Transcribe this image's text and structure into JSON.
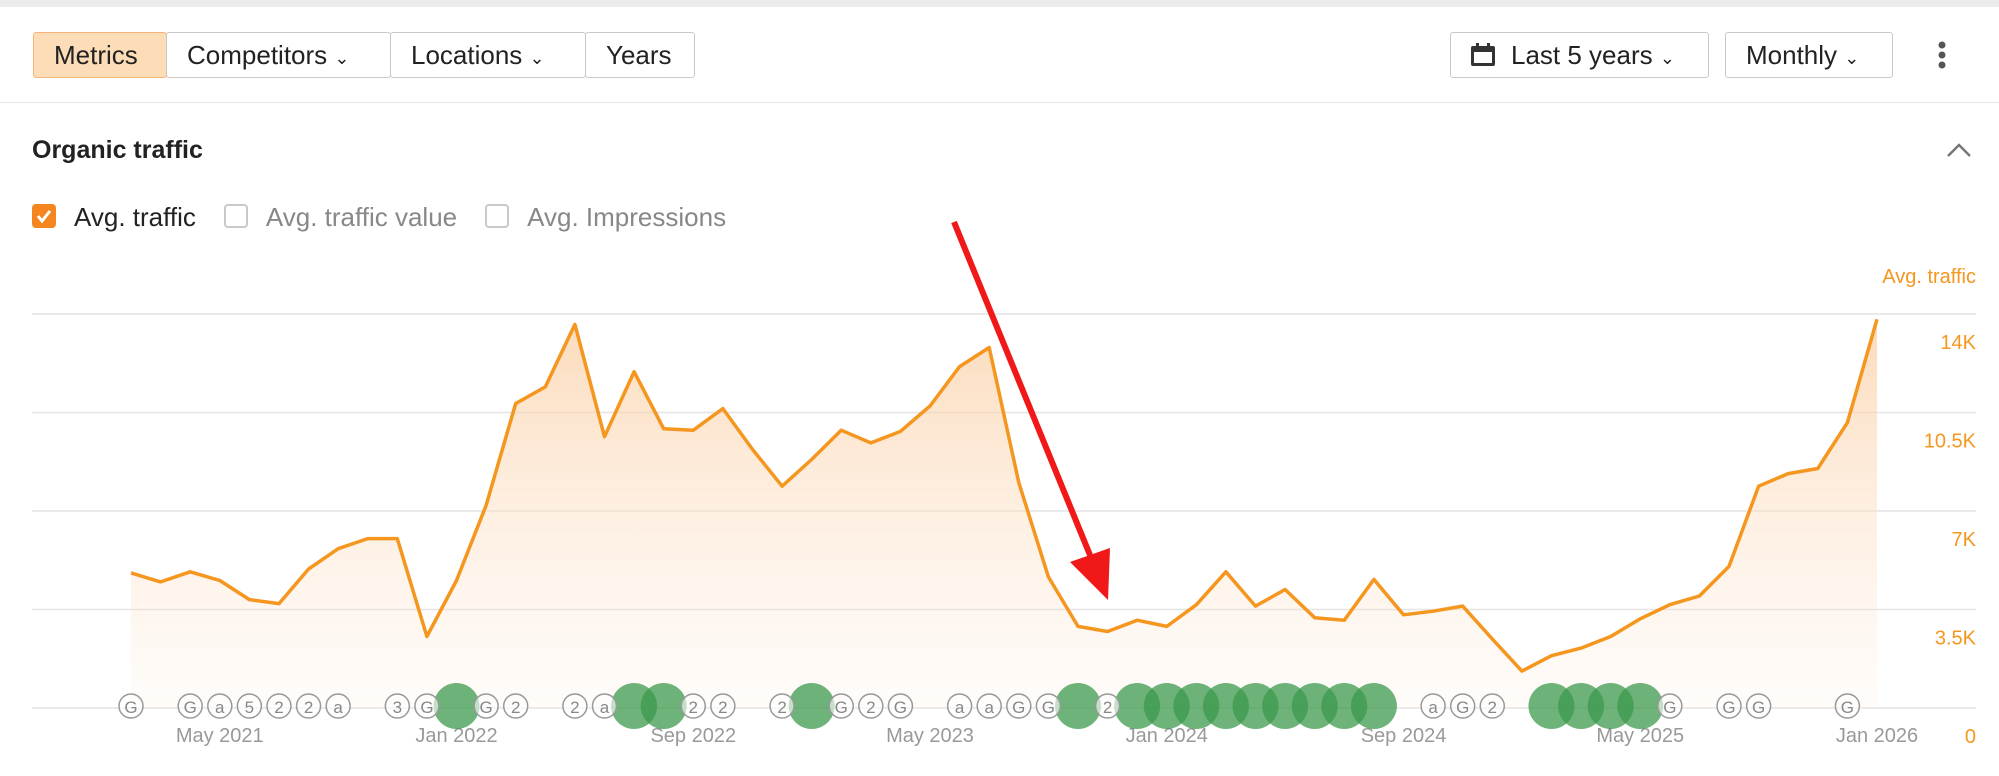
{
  "toolbar": {
    "tabs": [
      "Metrics",
      "Competitors",
      "Locations",
      "Years"
    ],
    "period": "Last 5 years",
    "interval": "Monthly"
  },
  "section_title": "Organic traffic",
  "toggles": [
    {
      "label": "Avg. traffic",
      "checked": true
    },
    {
      "label": "Avg. traffic value",
      "checked": false
    },
    {
      "label": "Avg. Impressions",
      "checked": false
    }
  ],
  "chart_data": {
    "type": "area",
    "axis_title": "Avg. traffic",
    "color": "#f5961f",
    "grid": true,
    "categories": [
      null,
      null,
      null,
      "May 2021",
      null,
      null,
      null,
      null,
      null,
      null,
      null,
      "Jan 2022",
      null,
      null,
      null,
      null,
      null,
      null,
      null,
      "Sep 2022",
      null,
      null,
      null,
      null,
      null,
      null,
      null,
      "May 2023",
      null,
      null,
      null,
      null,
      null,
      null,
      null,
      "Jan 2024",
      null,
      null,
      null,
      null,
      null,
      null,
      null,
      "Sep 2024",
      null,
      null,
      null,
      null,
      null,
      null,
      null,
      "May 2025",
      null,
      null,
      null,
      null,
      null,
      null,
      null,
      "Jan 2026"
    ],
    "values": [
      4800,
      4480,
      4840,
      4530,
      3850,
      3710,
      4940,
      5660,
      6020,
      6020,
      2540,
      4530,
      7200,
      10820,
      11410,
      13630,
      9640,
      11950,
      9920,
      9870,
      10640,
      9190,
      7880,
      8830,
      9870,
      9420,
      9830,
      10730,
      12130,
      12810,
      8010,
      4660,
      2900,
      2720,
      3120,
      2900,
      3670,
      4840,
      3620,
      4210,
      3210,
      3120,
      4570,
      3310,
      3440,
      3620,
      2450,
      1310,
      1860,
      2130,
      2540,
      3170,
      3670,
      3980,
      5030,
      7880,
      8330,
      8510,
      10140,
      13810
    ],
    "ylim": [
      0,
      14000
    ],
    "yticks": [
      0,
      {
        "value": 3500,
        "label": "3.5K"
      },
      {
        "value": 7000,
        "label": "7K"
      },
      {
        "value": 10500,
        "label": "10.5K"
      },
      {
        "value": 14000,
        "label": "14K"
      }
    ],
    "events": [
      {
        "x": 0,
        "label": "G"
      },
      {
        "x": 2,
        "label": "G"
      },
      {
        "x": 3,
        "label": "a"
      },
      {
        "x": 4,
        "label": "5"
      },
      {
        "x": 5,
        "label": "2"
      },
      {
        "x": 6,
        "label": "2"
      },
      {
        "x": 7,
        "label": "a"
      },
      {
        "x": 9,
        "label": "3"
      },
      {
        "x": 10,
        "label": "G"
      },
      {
        "x": 12,
        "label": "G"
      },
      {
        "x": 13,
        "label": "2"
      },
      {
        "x": 15,
        "label": "2"
      },
      {
        "x": 16,
        "label": "a"
      },
      {
        "x": 19,
        "label": "2"
      },
      {
        "x": 20,
        "label": "2"
      },
      {
        "x": 22,
        "label": "2"
      },
      {
        "x": 24,
        "label": "G"
      },
      {
        "x": 25,
        "label": "2"
      },
      {
        "x": 26,
        "label": "G"
      },
      {
        "x": 28,
        "label": "a"
      },
      {
        "x": 29,
        "label": "a"
      },
      {
        "x": 30,
        "label": "G"
      },
      {
        "x": 31,
        "label": "G"
      },
      {
        "x": 33,
        "label": "2"
      },
      {
        "x": 44,
        "label": "a"
      },
      {
        "x": 45,
        "label": "G"
      },
      {
        "x": 46,
        "label": "2"
      },
      {
        "x": 52,
        "label": "G"
      },
      {
        "x": 54,
        "label": "G"
      },
      {
        "x": 55,
        "label": "G"
      },
      {
        "x": 58,
        "label": "G"
      }
    ],
    "major_events": [
      11,
      17,
      18,
      23,
      32,
      34,
      35,
      36,
      37,
      38,
      39,
      40,
      41,
      42,
      48,
      49,
      50,
      51
    ]
  }
}
